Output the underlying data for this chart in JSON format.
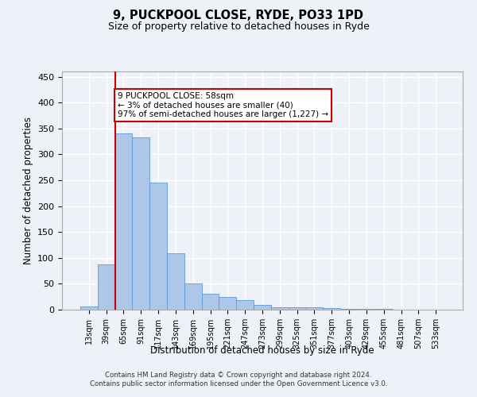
{
  "title1": "9, PUCKPOOL CLOSE, RYDE, PO33 1PD",
  "title2": "Size of property relative to detached houses in Ryde",
  "xlabel": "Distribution of detached houses by size in Ryde",
  "ylabel": "Number of detached properties",
  "categories": [
    "13sqm",
    "39sqm",
    "65sqm",
    "91sqm",
    "117sqm",
    "143sqm",
    "169sqm",
    "195sqm",
    "221sqm",
    "247sqm",
    "273sqm",
    "299sqm",
    "325sqm",
    "351sqm",
    "377sqm",
    "403sqm",
    "429sqm",
    "455sqm",
    "481sqm",
    "507sqm",
    "533sqm"
  ],
  "values": [
    6,
    88,
    340,
    333,
    245,
    109,
    50,
    30,
    24,
    19,
    9,
    5,
    4,
    4,
    3,
    1,
    1,
    1,
    0,
    0,
    0
  ],
  "bar_color": "#aec6e8",
  "bar_edge_color": "#5a9bd5",
  "vline_x_index": 1,
  "vline_color": "#cc0000",
  "annotation_line1": "9 PUCKPOOL CLOSE: 58sqm",
  "annotation_line2": "← 3% of detached houses are smaller (40)",
  "annotation_line3": "97% of semi-detached houses are larger (1,227) →",
  "annotation_box_color": "#ffffff",
  "annotation_box_edge": "#cc0000",
  "footer": "Contains HM Land Registry data © Crown copyright and database right 2024.\nContains public sector information licensed under the Open Government Licence v3.0.",
  "ylim": [
    0,
    460
  ],
  "background_color": "#eef2f8",
  "grid_color": "#ffffff"
}
